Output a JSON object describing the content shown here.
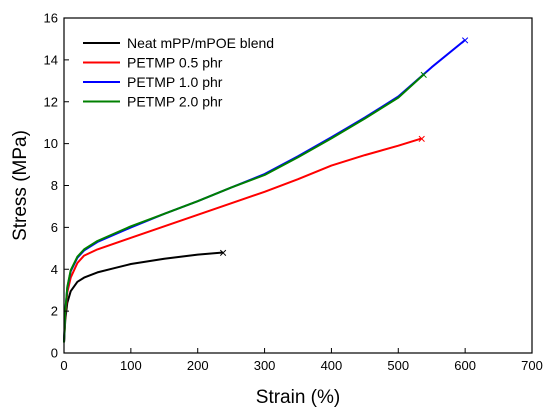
{
  "chart_data": {
    "type": "line",
    "xlabel": "Strain (%)",
    "ylabel": "Stress (MPa)",
    "xlim": [
      0,
      700
    ],
    "ylim": [
      0,
      16
    ],
    "xticks": [
      0,
      100,
      200,
      300,
      400,
      500,
      600,
      700
    ],
    "yticks": [
      0,
      2,
      4,
      6,
      8,
      10,
      12,
      14,
      16
    ],
    "grid": false,
    "legend_position": "top-left",
    "break_marker": "×",
    "series": [
      {
        "name": "Neat mPP/mPOE blend",
        "color": "#000000",
        "x": [
          0,
          2,
          5,
          10,
          20,
          30,
          50,
          75,
          100,
          150,
          200,
          238
        ],
        "y": [
          0.5,
          1.6,
          2.4,
          2.95,
          3.4,
          3.6,
          3.85,
          4.05,
          4.25,
          4.5,
          4.7,
          4.8
        ]
      },
      {
        "name": "PETMP 0.5 phr",
        "color": "#ff0000",
        "x": [
          0,
          2,
          5,
          10,
          20,
          30,
          50,
          100,
          150,
          200,
          250,
          300,
          350,
          400,
          450,
          500,
          535
        ],
        "y": [
          0.5,
          1.8,
          2.9,
          3.6,
          4.3,
          4.65,
          4.95,
          5.5,
          6.05,
          6.6,
          7.15,
          7.7,
          8.3,
          8.95,
          9.45,
          9.9,
          10.25
        ]
      },
      {
        "name": "PETMP 1.0 phr",
        "color": "#0000ff",
        "x": [
          0,
          2,
          5,
          10,
          20,
          30,
          50,
          100,
          150,
          200,
          250,
          300,
          350,
          400,
          450,
          500,
          550,
          600
        ],
        "y": [
          0.5,
          2.0,
          3.1,
          3.9,
          4.55,
          4.9,
          5.3,
          6.0,
          6.65,
          7.25,
          7.9,
          8.55,
          9.4,
          10.3,
          11.25,
          12.25,
          13.65,
          14.95
        ]
      },
      {
        "name": "PETMP 2.0 phr",
        "color": "#008000",
        "x": [
          0,
          2,
          5,
          10,
          20,
          30,
          50,
          100,
          150,
          200,
          250,
          300,
          350,
          400,
          450,
          500,
          538
        ],
        "y": [
          0.5,
          2.0,
          3.15,
          3.95,
          4.6,
          4.95,
          5.35,
          6.05,
          6.65,
          7.25,
          7.9,
          8.5,
          9.35,
          10.25,
          11.2,
          12.2,
          13.3
        ]
      }
    ]
  }
}
